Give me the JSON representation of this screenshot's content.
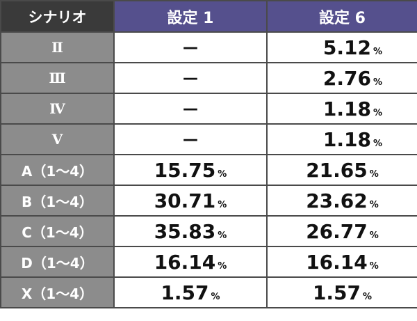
{
  "header": {
    "scenario": "シナリオ",
    "setting1": "設定 1",
    "setting6": "設定 6"
  },
  "percent_sign": "%",
  "rows": [
    {
      "label": "Ⅱ",
      "s1": "—",
      "s6": "5.12"
    },
    {
      "label": "Ⅲ",
      "s1": "—",
      "s6": "2.76"
    },
    {
      "label": "Ⅳ",
      "s1": "—",
      "s6": "1.18"
    },
    {
      "label": "Ⅴ",
      "s1": "—",
      "s6": "1.18"
    },
    {
      "label": "A（1～4）",
      "s1": "15.75",
      "s6": "21.65"
    },
    {
      "label": "B（1～4）",
      "s1": "30.71",
      "s6": "23.62"
    },
    {
      "label": "C（1～4）",
      "s1": "35.83",
      "s6": "26.77"
    },
    {
      "label": "D（1～4）",
      "s1": "16.14",
      "s6": "16.14"
    },
    {
      "label": "X（1～4）",
      "s1": "1.57",
      "s6": "1.57"
    }
  ]
}
